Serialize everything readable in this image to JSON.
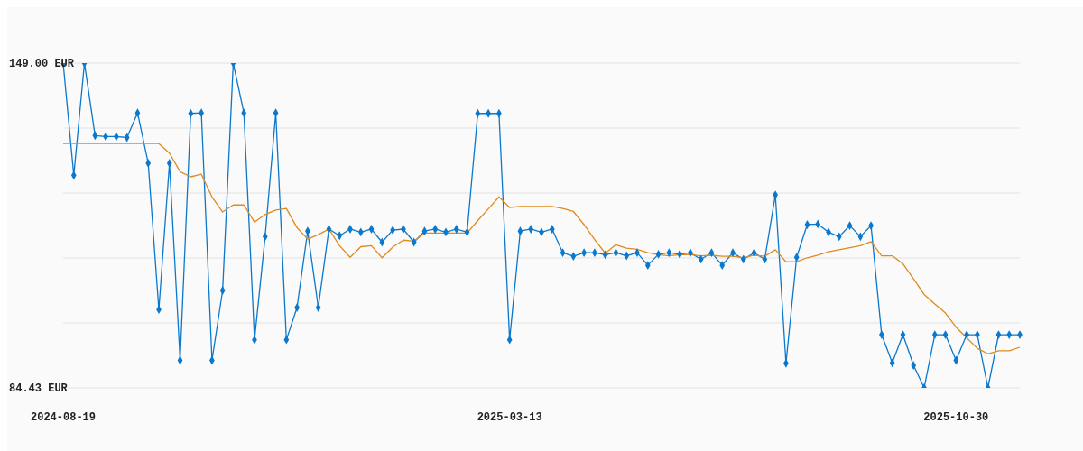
{
  "chart_data": {
    "type": "line",
    "categories": [
      "2024-08-19",
      null,
      null,
      null,
      null,
      null,
      null,
      null,
      null,
      null,
      null,
      null,
      null,
      null,
      null,
      null,
      null,
      null,
      null,
      null,
      null,
      null,
      null,
      null,
      null,
      null,
      null,
      null,
      null,
      null,
      null,
      null,
      null,
      null,
      null,
      null,
      null,
      null,
      null,
      null,
      null,
      null,
      "2025-03-13",
      null,
      null,
      null,
      null,
      null,
      null,
      null,
      null,
      null,
      null,
      null,
      null,
      null,
      null,
      null,
      null,
      null,
      null,
      null,
      null,
      null,
      null,
      null,
      null,
      null,
      null,
      null,
      null,
      null,
      null,
      null,
      null,
      null,
      null,
      null,
      null,
      null,
      null,
      null,
      null,
      null,
      "2025-10-30",
      null,
      null,
      null,
      null,
      null,
      null
    ],
    "series": [
      {
        "color": "#0a78cc",
        "values": [
          149.0,
          126.7,
          149.0,
          134.6,
          134.4,
          134.4,
          134.2,
          139.1,
          129.1,
          100.0,
          129.1,
          89.9,
          139.0,
          139.1,
          89.9,
          103.8,
          149.0,
          139.1,
          94.0,
          114.5,
          139.1,
          94.0,
          100.4,
          115.6,
          100.4,
          116.0,
          114.7,
          116.0,
          115.4,
          116.0,
          113.4,
          115.8,
          116.0,
          113.4,
          115.6,
          116.0,
          115.4,
          116.0,
          115.4,
          139.0,
          139.0,
          139.0,
          94.0,
          115.6,
          116.0,
          115.4,
          116.0,
          111.3,
          110.6,
          111.3,
          111.3,
          110.9,
          111.3,
          110.7,
          111.3,
          108.8,
          111.0,
          111.3,
          111.0,
          111.3,
          110.0,
          111.3,
          108.8,
          111.3,
          110.0,
          111.3,
          110.0,
          122.8,
          89.3,
          110.4,
          116.9,
          117.0,
          115.4,
          114.5,
          116.7,
          114.5,
          116.7,
          95.0,
          89.4,
          95.0,
          88.9,
          84.43,
          95.0,
          95.0,
          89.9,
          95.0,
          95.0,
          84.43,
          95.0,
          95.0,
          95.0
        ]
      },
      {
        "color": "#e08a1e",
        "marker": "none",
        "values": [
          133.0,
          133.0,
          133.0,
          133.0,
          133.0,
          133.0,
          133.0,
          133.0,
          133.0,
          133.0,
          131.1,
          127.4,
          126.4,
          126.9,
          122.4,
          119.4,
          120.8,
          120.8,
          117.4,
          118.9,
          119.8,
          120.1,
          116.3,
          114.0,
          114.9,
          116.0,
          112.7,
          110.4,
          112.5,
          112.7,
          110.3,
          112.4,
          113.8,
          113.6,
          115.2,
          115.2,
          115.2,
          115.2,
          115.2,
          117.7,
          120.0,
          122.4,
          120.3,
          120.5,
          120.5,
          120.5,
          120.5,
          120.1,
          119.5,
          116.9,
          113.9,
          111.2,
          112.9,
          112.2,
          112.0,
          111.3,
          110.9,
          110.7,
          110.9,
          110.9,
          110.7,
          110.8,
          110.6,
          110.6,
          110.3,
          110.8,
          110.6,
          111.9,
          109.5,
          109.5,
          110.3,
          110.8,
          111.5,
          111.9,
          112.3,
          112.7,
          113.5,
          110.7,
          110.7,
          109.1,
          106.1,
          103.0,
          101.1,
          99.3,
          96.5,
          94.4,
          92.3,
          91.2,
          91.8,
          91.8,
          92.5
        ]
      }
    ],
    "ylim": [
      84.43,
      149.0
    ],
    "yticks": [
      {
        "value": 84.43,
        "label": "84.43 EUR"
      },
      {
        "value": 97.344,
        "label": null
      },
      {
        "value": 110.258,
        "label": null
      },
      {
        "value": 123.172,
        "label": null
      },
      {
        "value": 136.086,
        "label": null
      },
      {
        "value": 149.0,
        "label": "149.00 EUR"
      }
    ],
    "grid": "y",
    "legend": false,
    "marker": "diamond",
    "line_style": "solid"
  }
}
